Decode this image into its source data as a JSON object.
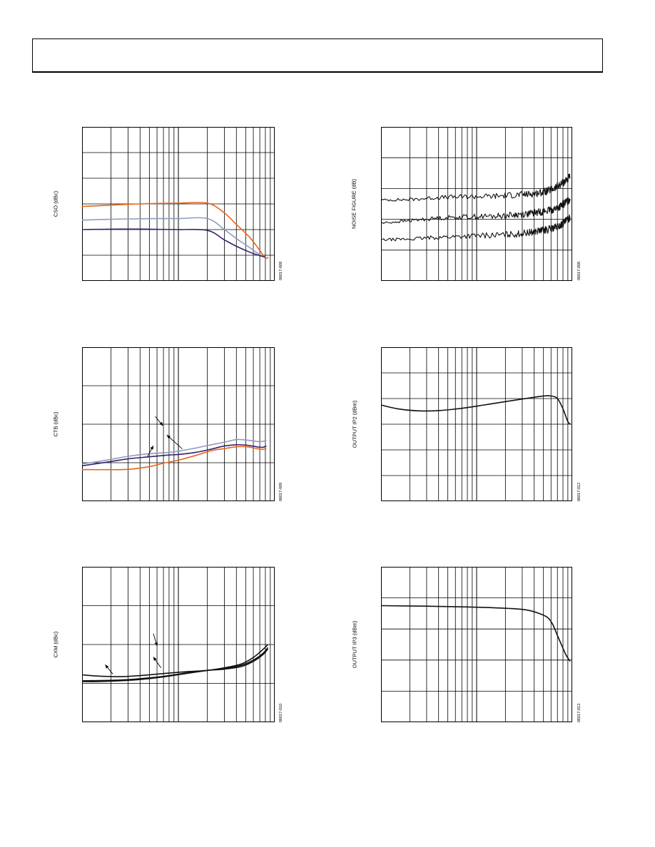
{
  "chart_data": [
    {
      "id": "cso",
      "type": "line",
      "ylabel": "CSO (dBc)",
      "code": "06017-008",
      "xscale": "log",
      "hlines": 6,
      "series": [
        {
          "color": "#e8661c",
          "x": [
            1.0,
            1.5,
            2.5,
            4.0,
            6.0,
            10.0,
            20.0,
            30.0,
            40.0,
            55.0,
            68.0,
            80.0,
            86.0
          ],
          "y": [
            2.9,
            2.93,
            2.97,
            3.0,
            3.02,
            3.03,
            3.03,
            2.65,
            2.2,
            1.7,
            1.25,
            0.9,
            0.92
          ]
        },
        {
          "color": "#8c9cba",
          "x": [
            1.0,
            1.5,
            2.5,
            4.0,
            6.0,
            10.0,
            20.0,
            30.0,
            40.0,
            55.0,
            68.0,
            80.0
          ],
          "y": [
            2.37,
            2.39,
            2.41,
            2.42,
            2.43,
            2.43,
            2.43,
            2.0,
            1.65,
            1.3,
            1.05,
            0.92
          ]
        },
        {
          "color": "#3a1f6e",
          "x": [
            1.0,
            1.5,
            2.5,
            4.0,
            6.0,
            10.0,
            20.0,
            30.0,
            40.0,
            55.0,
            68.0,
            80.0
          ],
          "y": [
            2.0,
            2.01,
            2.02,
            2.02,
            2.01,
            2.0,
            1.97,
            1.6,
            1.35,
            1.12,
            1.0,
            0.92
          ]
        }
      ]
    },
    {
      "id": "nf",
      "type": "line",
      "ylabel": "NOISE FIGURE (dB)",
      "code": "06017-006",
      "xscale": "log",
      "hlines": 5,
      "series": [
        {
          "color": "#111111",
          "noisy": true,
          "amp": 0.08,
          "x": [
            1.0,
            2.0,
            4.0,
            8.0,
            15.0,
            25.0,
            35.0,
            45.0,
            55.0,
            65.0,
            75.0,
            85.0,
            95.0
          ],
          "y": [
            3.15,
            3.17,
            3.25,
            3.28,
            3.3,
            3.35,
            3.38,
            3.43,
            3.5,
            3.6,
            3.75,
            3.9,
            4.05
          ]
        },
        {
          "color": "#111111",
          "noisy": true,
          "amp": 0.08,
          "x": [
            1.0,
            2.0,
            4.0,
            8.0,
            15.0,
            25.0,
            35.0,
            45.0,
            55.0,
            65.0,
            75.0,
            85.0,
            95.0
          ],
          "y": [
            2.25,
            2.35,
            2.45,
            2.5,
            2.52,
            2.57,
            2.62,
            2.68,
            2.73,
            2.8,
            2.9,
            3.05,
            3.2
          ]
        },
        {
          "color": "#111111",
          "noisy": true,
          "amp": 0.08,
          "x": [
            1.0,
            2.0,
            4.0,
            8.0,
            15.0,
            25.0,
            35.0,
            45.0,
            55.0,
            65.0,
            75.0,
            85.0,
            95.0
          ],
          "y": [
            1.6,
            1.63,
            1.7,
            1.75,
            1.78,
            1.82,
            1.88,
            1.95,
            2.0,
            2.07,
            2.15,
            2.3,
            2.5
          ]
        }
      ]
    },
    {
      "id": "ctb",
      "type": "line",
      "ylabel": "CTB (dBc)",
      "code": "06017-009",
      "xscale": "log",
      "hlines": 4,
      "series": [
        {
          "color": "#8c9cba",
          "x": [
            1.0,
            1.8,
            3.0,
            5.0,
            8.0,
            10.0,
            15.0,
            22.0,
            30.0,
            40.0,
            52.0,
            65.0,
            75.0,
            82.0
          ],
          "y": [
            1.45,
            1.6,
            1.75,
            1.85,
            1.9,
            1.95,
            2.07,
            2.2,
            2.3,
            2.4,
            2.38,
            2.33,
            2.33,
            2.38
          ]
        },
        {
          "color": "#3a1f6e",
          "x": [
            1.0,
            1.8,
            3.0,
            5.0,
            8.0,
            10.0,
            15.0,
            22.0,
            30.0,
            40.0,
            52.0,
            65.0,
            75.0,
            82.0
          ],
          "y": [
            1.38,
            1.52,
            1.65,
            1.73,
            1.8,
            1.82,
            1.9,
            2.03,
            2.15,
            2.2,
            2.18,
            2.12,
            2.1,
            2.15
          ]
        },
        {
          "color": "#e8661c",
          "x": [
            1.0,
            1.8,
            3.0,
            5.0,
            7.0,
            10.0,
            15.0,
            22.0,
            30.0,
            40.0,
            52.0,
            65.0,
            75.0,
            82.0
          ],
          "y": [
            1.23,
            1.23,
            1.24,
            1.35,
            1.48,
            1.6,
            1.78,
            1.97,
            2.05,
            2.12,
            2.12,
            2.05,
            2.02,
            2.05
          ]
        }
      ],
      "arrows": [
        {
          "x1": 0.38,
          "y1": 0.45,
          "x2": 0.42,
          "y2": 0.51
        },
        {
          "x1": 0.52,
          "y1": 0.66,
          "x2": 0.44,
          "y2": 0.57
        },
        {
          "x1": 0.34,
          "y1": 0.71,
          "x2": 0.37,
          "y2": 0.64
        }
      ]
    },
    {
      "id": "ip2",
      "type": "line",
      "ylabel": "OUTPUT IP2 (dBm)",
      "code": "06017-012",
      "xscale": "log",
      "hlines": 6,
      "series": [
        {
          "color": "#111111",
          "x": [
            1.0,
            1.5,
            2.5,
            4.0,
            7.0,
            12.0,
            20.0,
            30.0,
            40.0,
            50.0,
            60.0,
            70.0,
            80.0,
            90.0,
            96.0
          ],
          "y": [
            3.75,
            3.6,
            3.52,
            3.53,
            3.62,
            3.75,
            3.88,
            3.98,
            4.05,
            4.1,
            4.1,
            4.0,
            3.6,
            3.1,
            3.0
          ]
        }
      ]
    },
    {
      "id": "cxm",
      "type": "line",
      "ylabel": "CXM (dBc)",
      "code": "06017-010",
      "xscale": "log",
      "hlines": 4,
      "series": [
        {
          "color": "#111111",
          "x": [
            1.0,
            1.5,
            2.5,
            4.0,
            7.0,
            12.0,
            20.0,
            30.0,
            45.0,
            60.0,
            75.0,
            85.0
          ],
          "y": [
            1.83,
            1.78,
            1.76,
            1.8,
            1.88,
            1.95,
            2.0,
            2.1,
            2.25,
            2.5,
            2.8,
            3.0
          ]
        },
        {
          "color": "#111111",
          "x": [
            1.0,
            1.5,
            2.5,
            4.0,
            7.0,
            12.0,
            20.0,
            30.0,
            45.0,
            60.0,
            75.0,
            85.0
          ],
          "y": [
            1.6,
            1.61,
            1.63,
            1.68,
            1.77,
            1.9,
            2.0,
            2.05,
            2.15,
            2.35,
            2.6,
            2.83
          ]
        },
        {
          "color": "#111111",
          "x": [
            1.0,
            1.5,
            2.5,
            4.0,
            7.0,
            12.0,
            20.0,
            30.0,
            45.0,
            60.0,
            75.0,
            85.0
          ],
          "y": [
            1.57,
            1.57,
            1.6,
            1.65,
            1.75,
            1.88,
            2.0,
            2.08,
            2.2,
            2.4,
            2.65,
            2.88
          ]
        }
      ],
      "arrows": [
        {
          "x1": 0.37,
          "y1": 0.43,
          "x2": 0.39,
          "y2": 0.51
        },
        {
          "x1": 0.41,
          "y1": 0.65,
          "x2": 0.37,
          "y2": 0.58
        },
        {
          "x1": 0.16,
          "y1": 0.69,
          "x2": 0.12,
          "y2": 0.63
        }
      ]
    },
    {
      "id": "ip3",
      "type": "line",
      "ylabel": "OUTPUT IP3 (dBm)",
      "code": "06017-013",
      "xscale": "log",
      "hlines": 5,
      "series": [
        {
          "color": "#111111",
          "x": [
            1.0,
            3.0,
            8.0,
            15.0,
            25.0,
            35.0,
            45.0,
            55.0,
            62.0,
            70.0,
            78.0,
            86.0,
            95.0
          ],
          "y": [
            4.5,
            4.48,
            4.45,
            4.42,
            4.38,
            4.32,
            4.2,
            4.05,
            3.8,
            3.35,
            2.95,
            2.6,
            2.35
          ]
        }
      ]
    }
  ]
}
